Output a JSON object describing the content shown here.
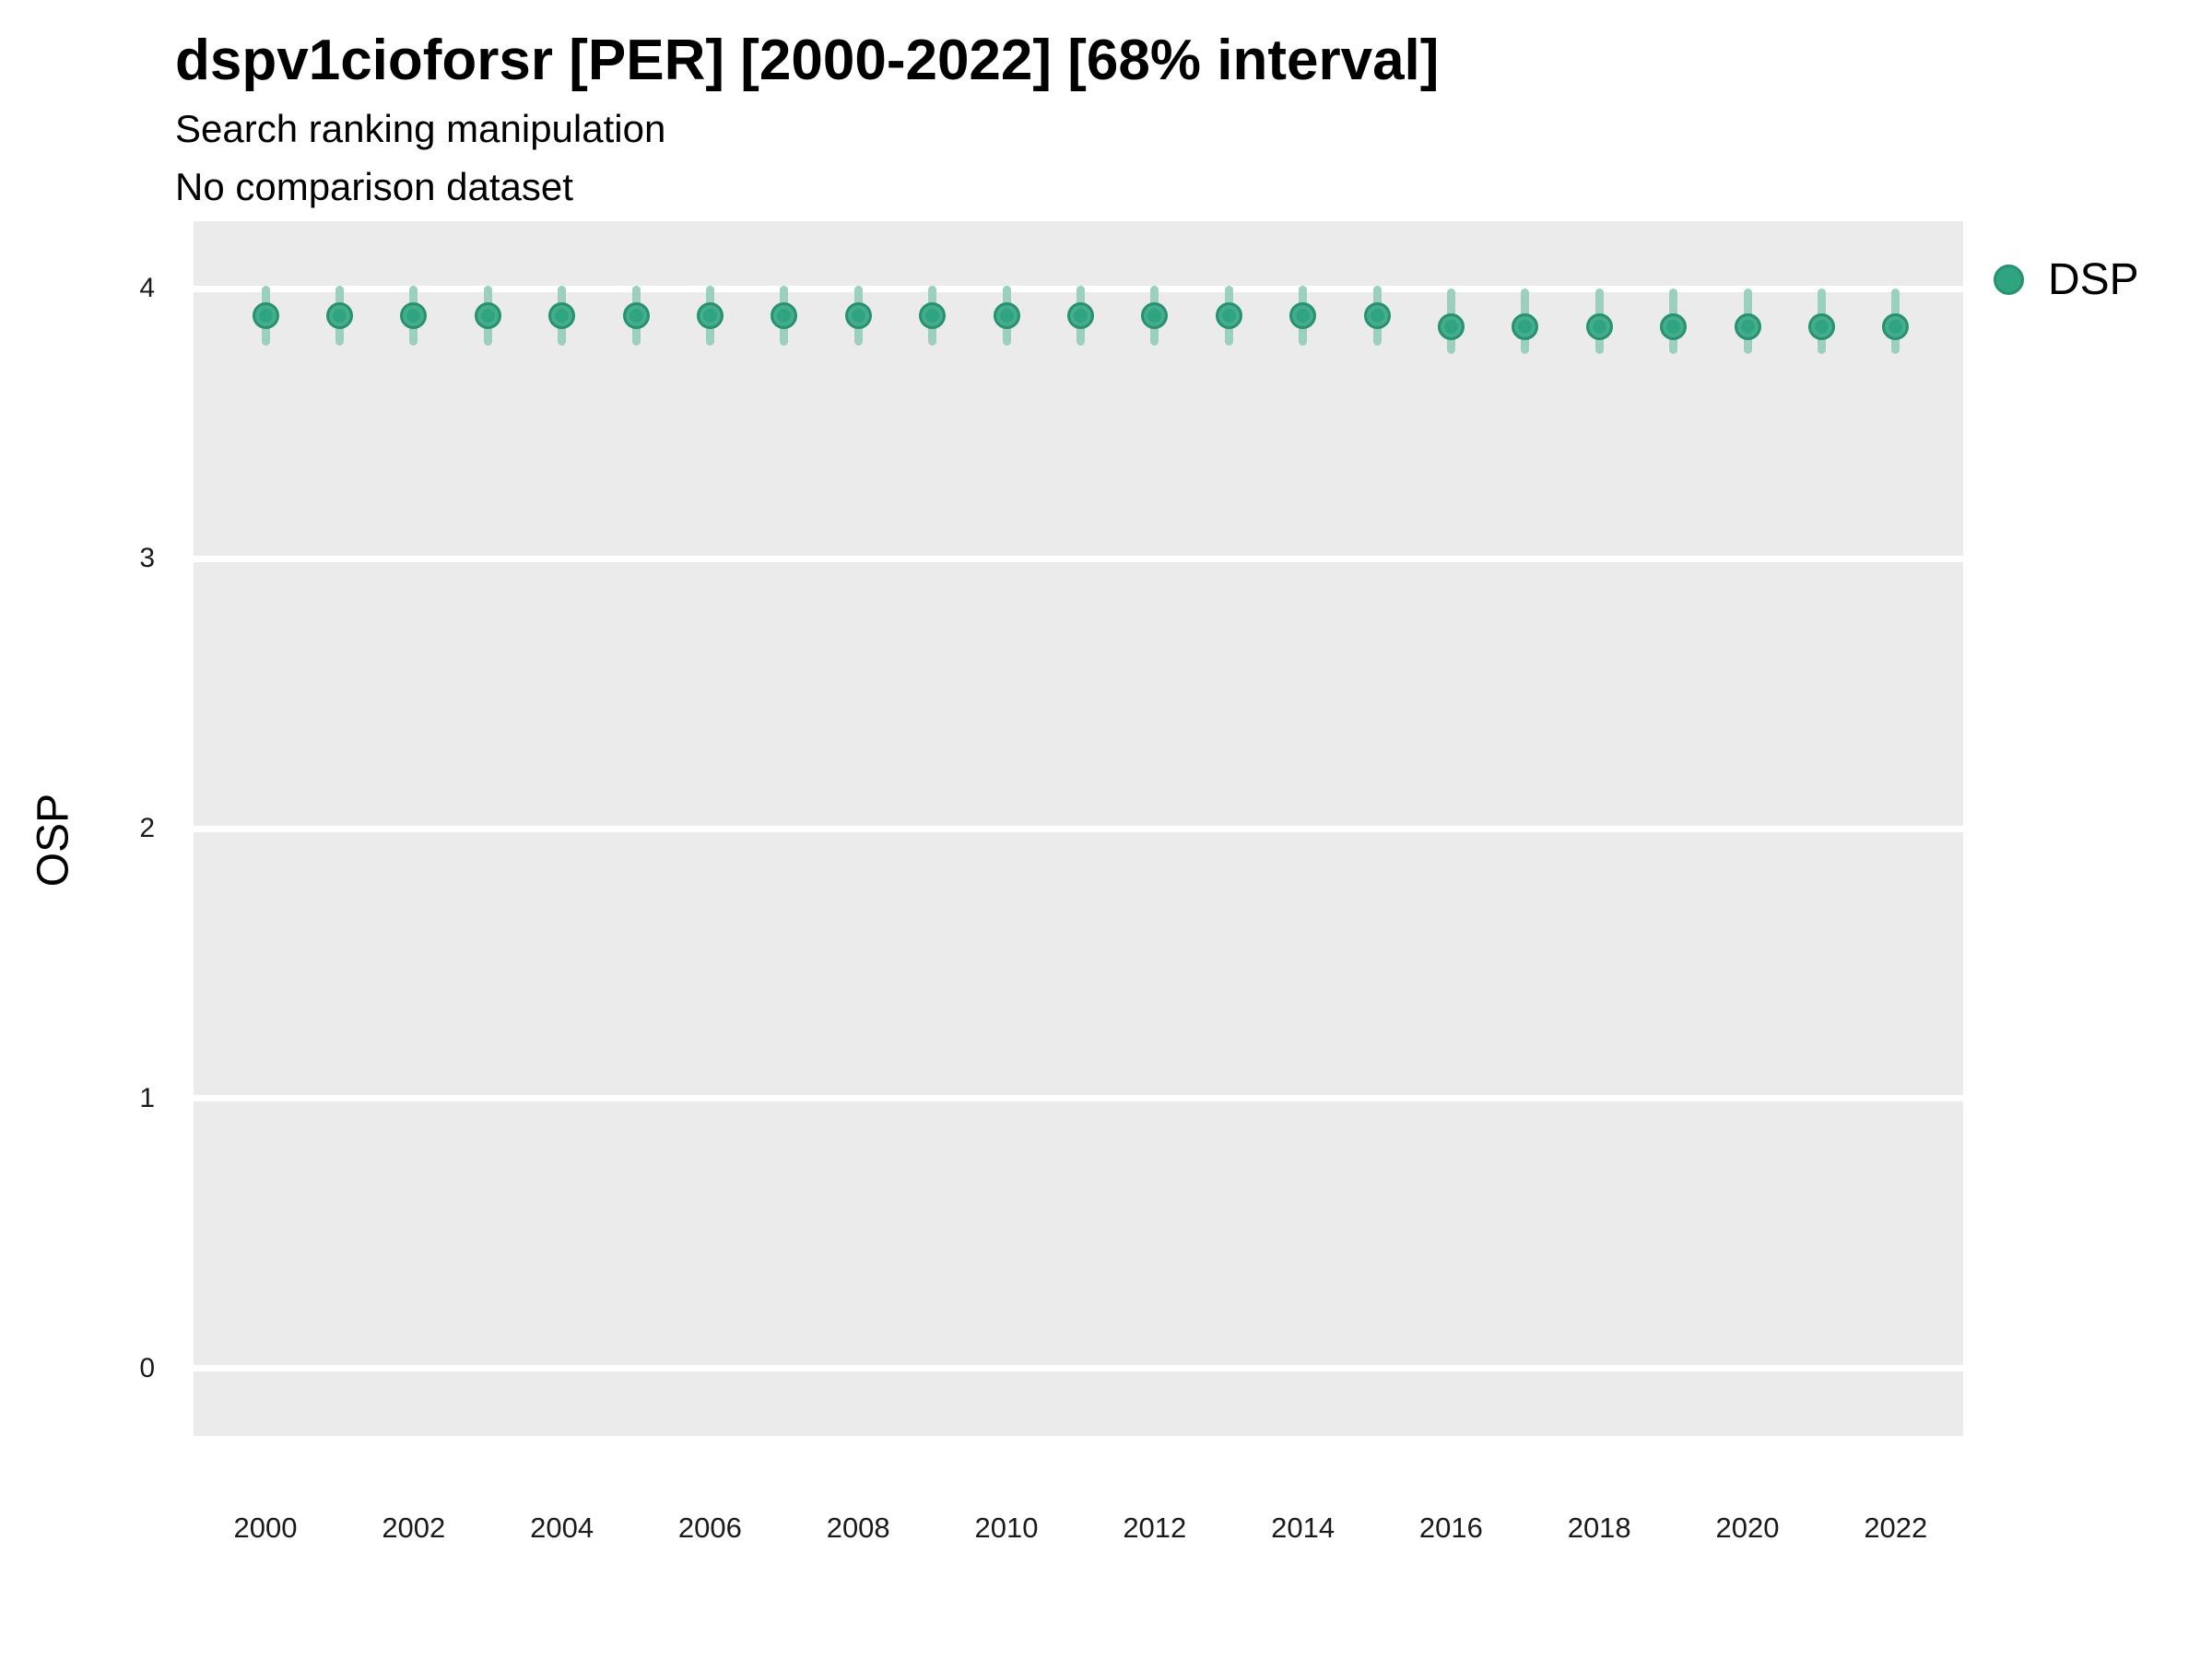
{
  "header": {
    "title": "dspv1cioforsr [PER] [2000-2022] [68% interval]",
    "subtitle": "Search ranking manipulation",
    "note": "No comparison dataset"
  },
  "chart_data": {
    "type": "pointrange",
    "title": "dspv1cioforsr [PER] [2000-2022] [68% interval]",
    "subtitle": "Search ranking manipulation",
    "annotation": "No comparison dataset",
    "xlabel": "",
    "ylabel": "OSP",
    "x": [
      2000,
      2001,
      2002,
      2003,
      2004,
      2005,
      2006,
      2007,
      2008,
      2009,
      2010,
      2011,
      2012,
      2013,
      2014,
      2015,
      2016,
      2017,
      2018,
      2019,
      2020,
      2021,
      2022
    ],
    "xtick_labels": [
      "2000",
      "2002",
      "2004",
      "2006",
      "2008",
      "2010",
      "2012",
      "2014",
      "2016",
      "2018",
      "2020",
      "2022"
    ],
    "yticks": [
      0,
      1,
      2,
      3,
      4
    ],
    "ylim": [
      -0.25,
      4.25
    ],
    "xlim": [
      1999,
      2023
    ],
    "grid": "horizontal-major-only",
    "panel_bg": "#EBEBEB",
    "gridline_color": "#FFFFFF",
    "legend_position": "right",
    "interval_level": "68%",
    "series": [
      {
        "name": "DSP",
        "color": "#30A480",
        "interval_color": "#9CD0BE",
        "values": [
          3.9,
          3.9,
          3.9,
          3.9,
          3.9,
          3.9,
          3.9,
          3.9,
          3.9,
          3.9,
          3.9,
          3.9,
          3.9,
          3.9,
          3.9,
          3.9,
          3.86,
          3.86,
          3.86,
          3.86,
          3.86,
          3.86,
          3.86
        ],
        "lo": [
          3.79,
          3.79,
          3.79,
          3.79,
          3.79,
          3.79,
          3.79,
          3.79,
          3.79,
          3.79,
          3.79,
          3.79,
          3.79,
          3.79,
          3.79,
          3.79,
          3.76,
          3.76,
          3.76,
          3.76,
          3.76,
          3.76,
          3.76
        ],
        "hi": [
          4.01,
          4.01,
          4.01,
          4.01,
          4.01,
          4.01,
          4.01,
          4.01,
          4.01,
          4.01,
          4.01,
          4.01,
          4.01,
          4.01,
          4.01,
          4.01,
          4.0,
          4.0,
          4.0,
          4.0,
          4.0,
          4.0,
          4.0
        ]
      }
    ]
  },
  "legend": {
    "entries": [
      {
        "label": "DSP"
      }
    ]
  }
}
